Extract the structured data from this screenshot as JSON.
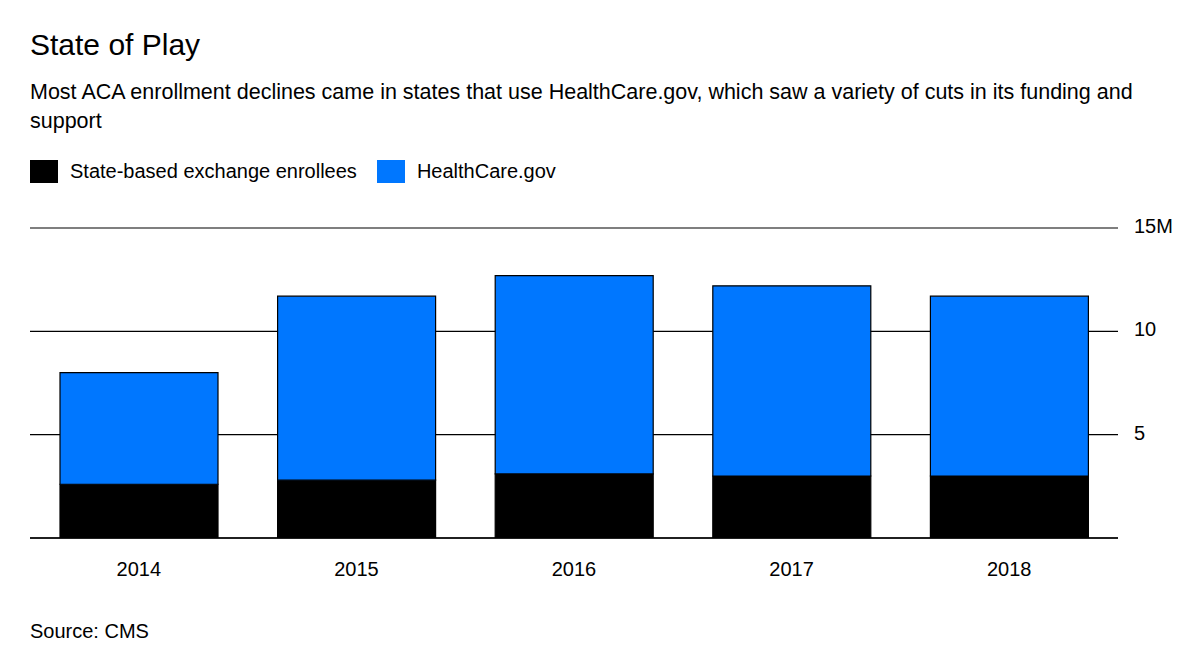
{
  "chart_data": {
    "type": "bar",
    "title": "State of Play",
    "subtitle": "Most ACA enrollment declines came in states that use HealthCare.gov, which saw a variety of cuts in its funding and support",
    "source": "Source: CMS",
    "categories": [
      "2014",
      "2015",
      "2016",
      "2017",
      "2018"
    ],
    "series": [
      {
        "name": "State-based exchange enrollees",
        "color": "#000000",
        "values": [
          2.6,
          2.8,
          3.1,
          3.0,
          3.0
        ]
      },
      {
        "name": "HealthCare.gov",
        "color": "#0077ff",
        "values": [
          5.4,
          8.9,
          9.6,
          9.2,
          8.7
        ]
      }
    ],
    "ylim": [
      0,
      15
    ],
    "yticks": [
      5,
      10,
      {
        "value": 15,
        "label": "15M"
      }
    ],
    "stacked": true,
    "grid": true,
    "legend": "top-left"
  }
}
